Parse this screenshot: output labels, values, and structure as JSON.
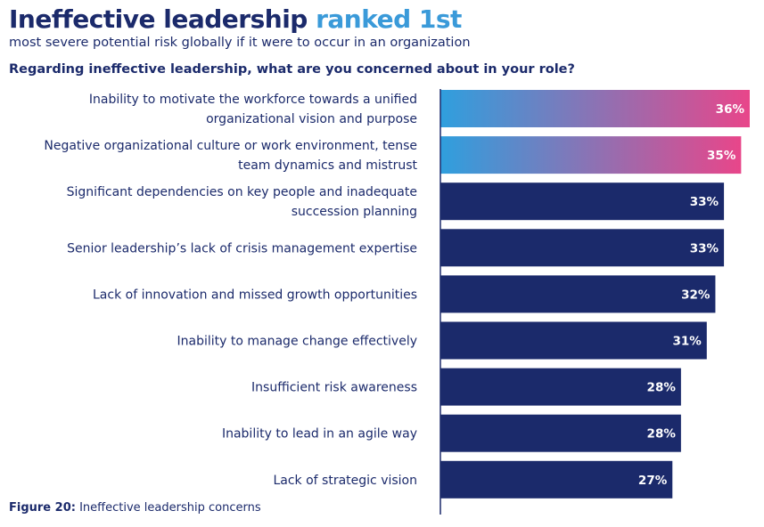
{
  "header": {
    "title_main": "Ineffective leadership",
    "title_accent": "ranked 1st",
    "subtitle": "most severe potential risk globally if it were to occur in an organization",
    "question": "Regarding ineffective leadership, what are you concerned about in your role?"
  },
  "caption": {
    "label": "Figure 20:",
    "text": "Ineffective leadership concerns"
  },
  "colors": {
    "navy": "#1b2a6b",
    "accent_blue": "#3a9ad9",
    "gradient_start": "#2f9fde",
    "gradient_end": "#e8468a"
  },
  "chart_data": {
    "type": "bar",
    "orientation": "horizontal",
    "categories": [
      [
        "Inability to motivate the workforce towards a unified",
        "organizational vision and purpose"
      ],
      [
        "Negative organizational culture or work environment, tense",
        "team dynamics and mistrust"
      ],
      [
        "Significant dependencies on key people and inadequate",
        "succession planning"
      ],
      [
        "Senior leadership’s lack of crisis management expertise"
      ],
      [
        "Lack of innovation and missed growth opportunities"
      ],
      [
        "Inability to manage change effectively"
      ],
      [
        "Insufficient risk awareness"
      ],
      [
        "Inability to lead in an agile way"
      ],
      [
        "Lack of strategic vision"
      ]
    ],
    "values": [
      36,
      35,
      33,
      33,
      32,
      31,
      28,
      28,
      27
    ],
    "value_labels": [
      "36%",
      "35%",
      "33%",
      "33%",
      "32%",
      "31%",
      "28%",
      "28%",
      "27%"
    ],
    "highlighted": [
      true,
      true,
      false,
      false,
      false,
      false,
      false,
      false,
      false
    ],
    "xlim": [
      0,
      36
    ],
    "grid": false,
    "legend": "none"
  }
}
